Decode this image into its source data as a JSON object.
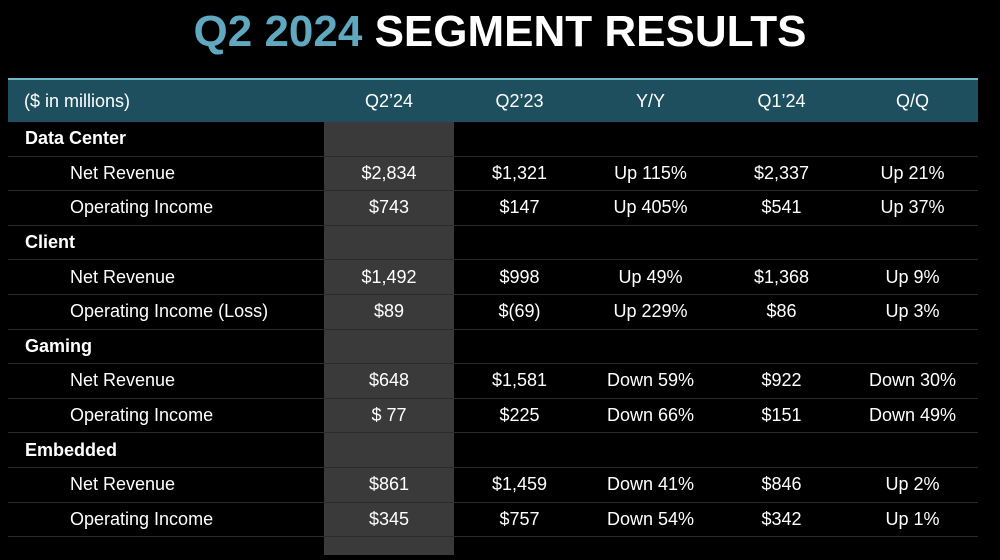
{
  "title": {
    "accent": "Q2 2024",
    "main": "SEGMENT RESULTS"
  },
  "header": {
    "label": "($ in millions)",
    "columns": [
      "Q2’24",
      "Q2’23",
      "Y/Y",
      "Q1’24",
      "Q/Q"
    ]
  },
  "colors": {
    "accent": "#5fa8bf",
    "header_bg": "#1e4f5e",
    "highlight_column": "#3a3a3a",
    "background": "#000000"
  },
  "segments": [
    {
      "name": "Data Center",
      "rows": [
        {
          "label": "Net Revenue",
          "values": [
            "$2,834",
            "$1,321",
            "Up 115%",
            "$2,337",
            "Up 21%"
          ]
        },
        {
          "label": "Operating Income",
          "values": [
            "$743",
            "$147",
            "Up 405%",
            "$541",
            "Up 37%"
          ]
        }
      ]
    },
    {
      "name": "Client",
      "rows": [
        {
          "label": "Net Revenue",
          "values": [
            "$1,492",
            "$998",
            "Up 49%",
            "$1,368",
            "Up 9%"
          ]
        },
        {
          "label": "Operating Income (Loss)",
          "values": [
            "$89",
            "$(69)",
            "Up 229%",
            "$86",
            "Up 3%"
          ]
        }
      ]
    },
    {
      "name": "Gaming",
      "rows": [
        {
          "label": "Net Revenue",
          "values": [
            "$648",
            "$1,581",
            "Down 59%",
            "$922",
            "Down 30%"
          ]
        },
        {
          "label": "Operating Income",
          "values": [
            "$ 77",
            "$225",
            "Down 66%",
            "$151",
            "Down 49%"
          ]
        }
      ]
    },
    {
      "name": "Embedded",
      "rows": [
        {
          "label": "Net Revenue",
          "values": [
            "$861",
            "$1,459",
            "Down 41%",
            "$846",
            "Up 2%"
          ]
        },
        {
          "label": "Operating Income",
          "values": [
            "$345",
            "$757",
            "Down 54%",
            "$342",
            "Up 1%"
          ]
        }
      ]
    }
  ]
}
